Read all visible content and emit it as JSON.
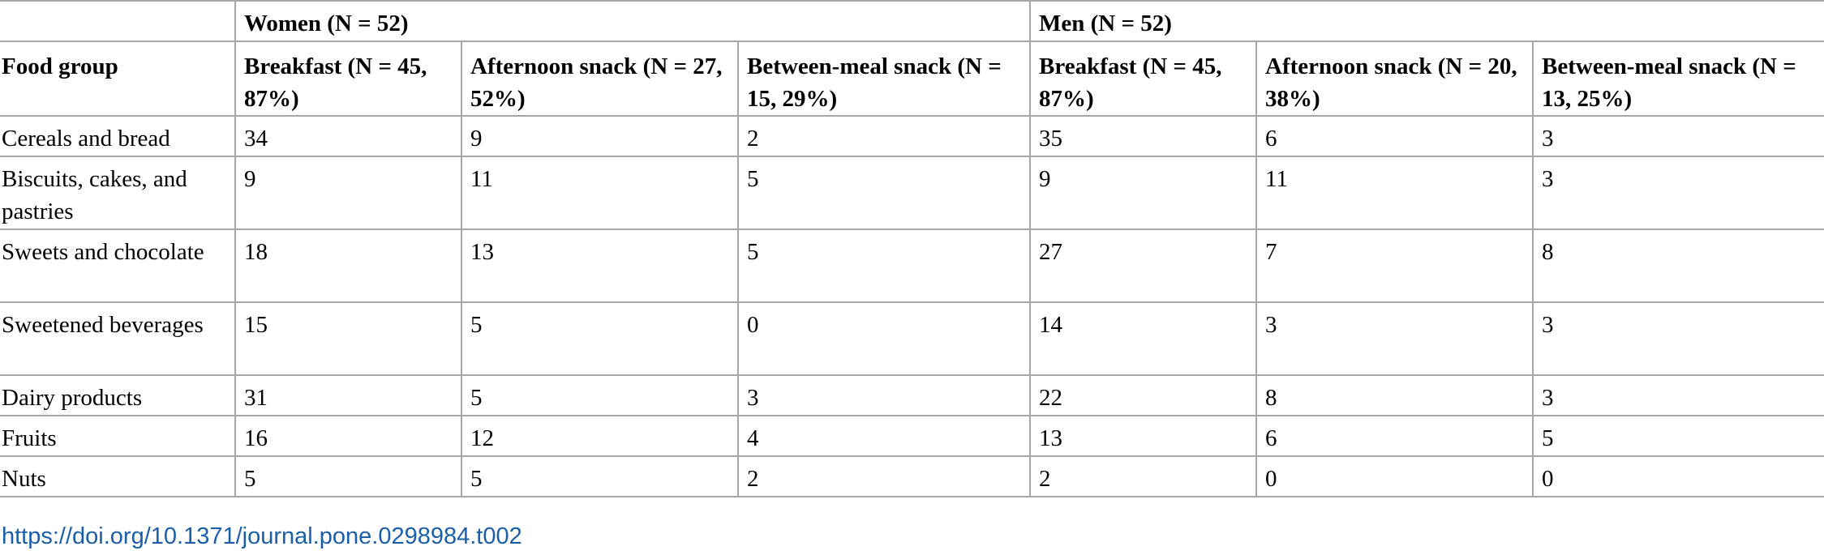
{
  "table": {
    "groups": [
      {
        "label": "Women (N = 52)"
      },
      {
        "label": "Men (N = 52)"
      }
    ],
    "columns": [
      {
        "label": "Food group"
      },
      {
        "label": "Breakfast (N = 45, 87%)"
      },
      {
        "label": "Afternoon snack (N = 27, 52%)"
      },
      {
        "label": "Between-meal snack (N = 15, 29%)"
      },
      {
        "label": "Breakfast (N = 45, 87%)"
      },
      {
        "label": "Afternoon snack (N = 20, 38%)"
      },
      {
        "label": "Between-meal snack (N = 13, 25%)"
      }
    ],
    "rows": [
      {
        "cells": [
          "Cereals and bread",
          "34",
          "9",
          "2",
          "35",
          "6",
          "3"
        ]
      },
      {
        "cells": [
          "Biscuits, cakes, and pastries",
          "9",
          "11",
          "5",
          "9",
          "11",
          "3"
        ]
      },
      {
        "cells": [
          "Sweets and chocolate",
          "18",
          "13",
          "5",
          "27",
          "7",
          "8"
        ]
      },
      {
        "cells": [
          "Sweetened beverages",
          "15",
          "5",
          "0",
          "14",
          "3",
          "3"
        ]
      },
      {
        "cells": [
          "Dairy products",
          "31",
          "5",
          "3",
          "22",
          "8",
          "3"
        ]
      },
      {
        "cells": [
          "Fruits",
          "16",
          "12",
          "4",
          "13",
          "6",
          "5"
        ]
      },
      {
        "cells": [
          "Nuts",
          "5",
          "5",
          "2",
          "2",
          "0",
          "0"
        ]
      }
    ]
  },
  "footer": {
    "doi": "https://doi.org/10.1371/journal.pone.0298984.t002"
  },
  "colors": {
    "border": "#a6a6a6",
    "link": "#1a5fa8",
    "text": "#000000"
  }
}
